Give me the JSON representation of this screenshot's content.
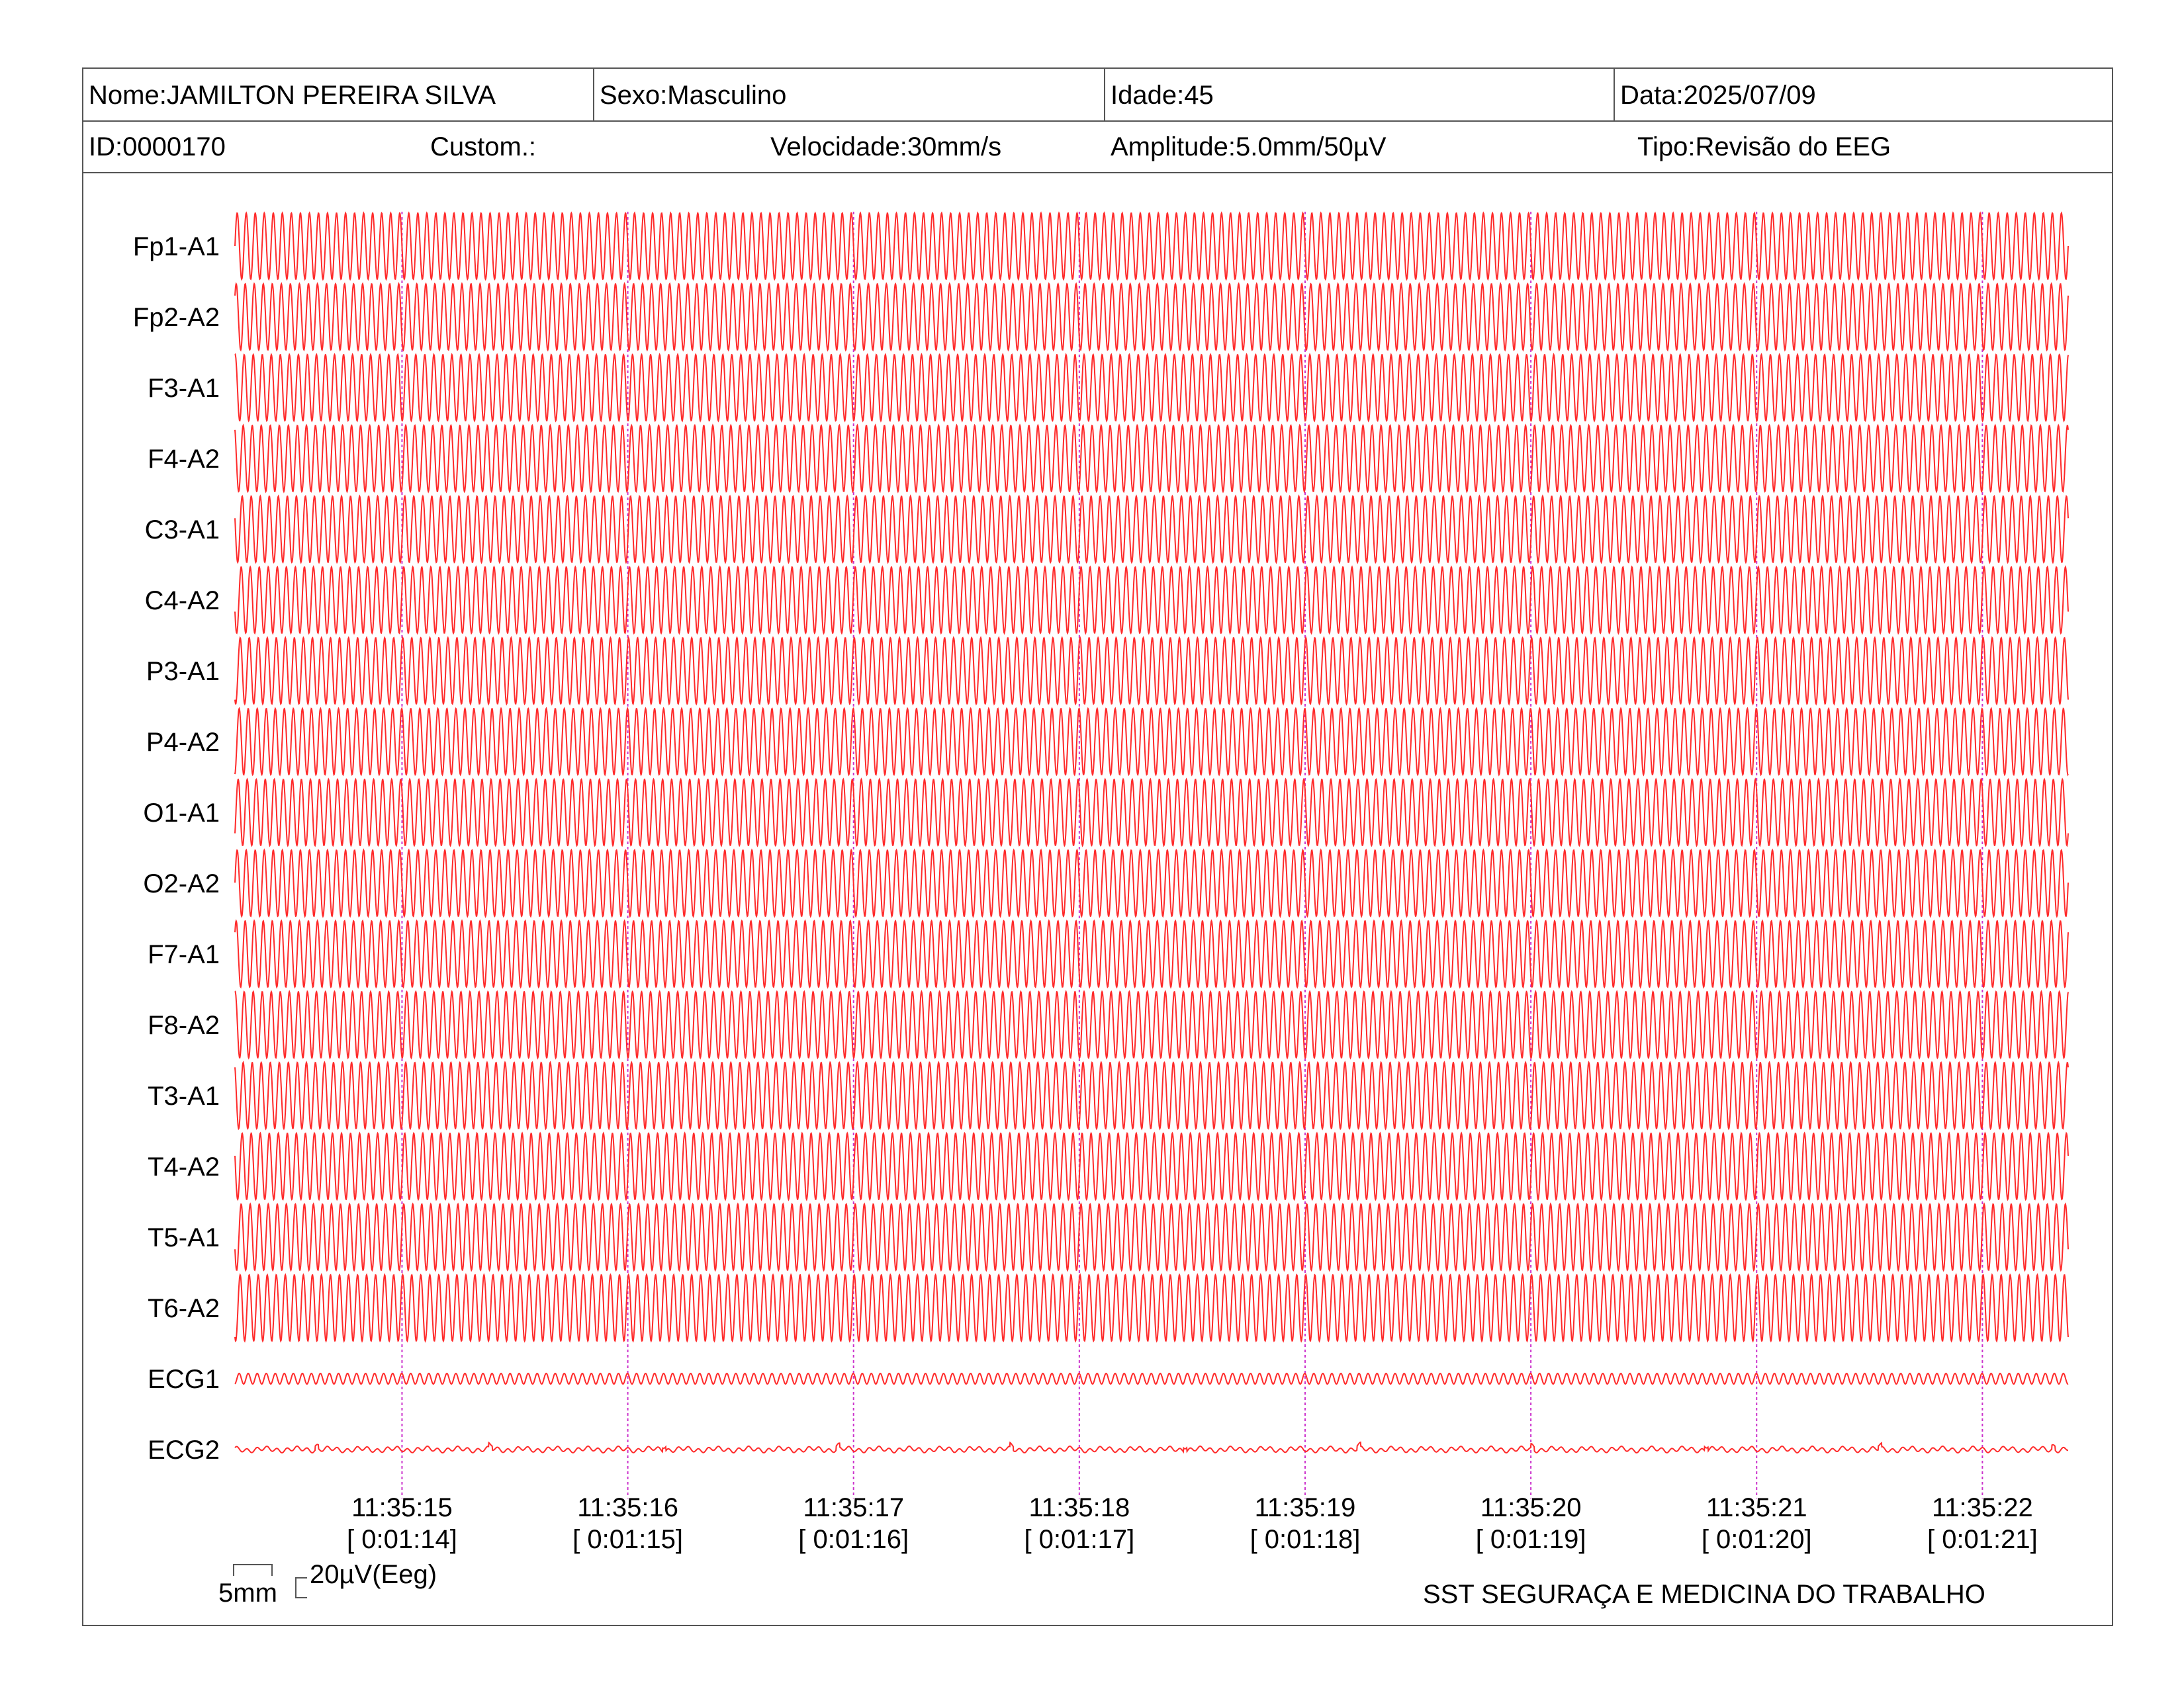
{
  "header": {
    "nome": "Nome:JAMILTON PEREIRA SILVA",
    "sexo": "Sexo:Masculino",
    "idade": "Idade:45",
    "data": "Data:2025/07/09",
    "id": "ID:0000170",
    "custom": "Custom.:",
    "velocidade": "Velocidade:30mm/s",
    "amplitude": "Amplitude:5.0mm/50µV",
    "tipo": "Tipo:Revisão do EEG"
  },
  "scale": {
    "mm_label": "5mm",
    "uv_label": "20µV(Eeg)"
  },
  "footer": "SST SEGURAÇA E MEDICINA DO TRABALHO",
  "colors": {
    "trace": "#ff2a2a",
    "marker": "#cc33cc",
    "border": "#555555"
  },
  "chart_data": {
    "type": "line",
    "title": "",
    "xlabel": "",
    "ylabel": "",
    "grid": false,
    "channels": [
      {
        "name": "Fp1-A1",
        "kind": "eeg"
      },
      {
        "name": "Fp2-A2",
        "kind": "eeg"
      },
      {
        "name": "F3-A1",
        "kind": "eeg"
      },
      {
        "name": "F4-A2",
        "kind": "eeg"
      },
      {
        "name": "C3-A1",
        "kind": "eeg"
      },
      {
        "name": "C4-A2",
        "kind": "eeg"
      },
      {
        "name": "P3-A1",
        "kind": "eeg"
      },
      {
        "name": "P4-A2",
        "kind": "eeg"
      },
      {
        "name": "O1-A1",
        "kind": "eeg"
      },
      {
        "name": "O2-A2",
        "kind": "eeg"
      },
      {
        "name": "F7-A1",
        "kind": "eeg"
      },
      {
        "name": "F8-A2",
        "kind": "eeg"
      },
      {
        "name": "T3-A1",
        "kind": "eeg"
      },
      {
        "name": "T4-A2",
        "kind": "eeg"
      },
      {
        "name": "T5-A1",
        "kind": "eeg"
      },
      {
        "name": "T6-A2",
        "kind": "eeg"
      },
      {
        "name": "ECG1",
        "kind": "ecg1"
      },
      {
        "name": "ECG2",
        "kind": "ecg2"
      }
    ],
    "time_markers": [
      {
        "clock": "11:35:15",
        "elapsed": "[ 0:01:14]"
      },
      {
        "clock": "11:35:16",
        "elapsed": "[ 0:01:15]"
      },
      {
        "clock": "11:35:17",
        "elapsed": "[ 0:01:16]"
      },
      {
        "clock": "11:35:18",
        "elapsed": "[ 0:01:17]"
      },
      {
        "clock": "11:35:19",
        "elapsed": "[ 0:01:18]"
      },
      {
        "clock": "11:35:20",
        "elapsed": "[ 0:01:19]"
      },
      {
        "clock": "11:35:21",
        "elapsed": "[ 0:01:20]"
      },
      {
        "clock": "11:35:22",
        "elapsed": "[ 0:01:21]"
      }
    ],
    "x_range_seconds": [
      14.26,
      22.38
    ],
    "wave_frequency_hz": 25
  }
}
